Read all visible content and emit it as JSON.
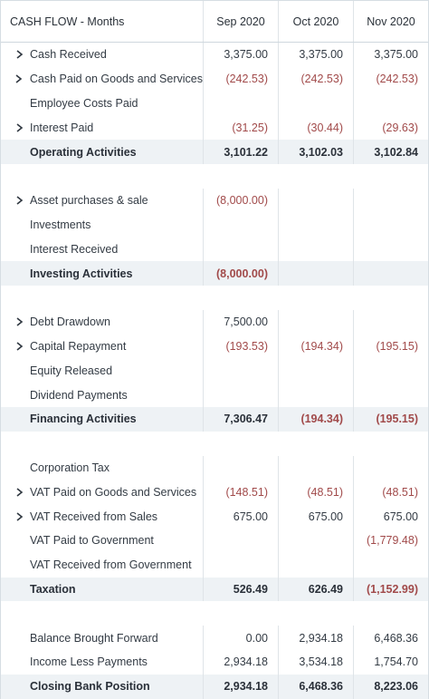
{
  "header": {
    "title": "CASH FLOW - Months",
    "columns": [
      "Sep 2020",
      "Oct 2020",
      "Nov 2020"
    ]
  },
  "rows": [
    {
      "type": "item",
      "label": "Cash Received",
      "expandable": true,
      "v": [
        "3,375.00",
        "3,375.00",
        "3,375.00"
      ],
      "neg": [
        false,
        false,
        false
      ]
    },
    {
      "type": "item",
      "label": "Cash Paid on Goods and Services",
      "expandable": true,
      "v": [
        "(242.53)",
        "(242.53)",
        "(242.53)"
      ],
      "neg": [
        true,
        true,
        true
      ]
    },
    {
      "type": "item",
      "label": "Employee Costs Paid",
      "expandable": false,
      "v": [
        "",
        "",
        ""
      ],
      "neg": [
        false,
        false,
        false
      ]
    },
    {
      "type": "item",
      "label": "Interest Paid",
      "expandable": true,
      "v": [
        "(31.25)",
        "(30.44)",
        "(29.63)"
      ],
      "neg": [
        true,
        true,
        true
      ]
    },
    {
      "type": "subtotal",
      "label": "Operating Activities",
      "v": [
        "3,101.22",
        "3,102.03",
        "3,102.84"
      ],
      "neg": [
        false,
        false,
        false
      ]
    },
    {
      "type": "spacer"
    },
    {
      "type": "item",
      "label": "Asset purchases & sale",
      "expandable": true,
      "v": [
        "(8,000.00)",
        "",
        ""
      ],
      "neg": [
        true,
        false,
        false
      ]
    },
    {
      "type": "item",
      "label": "Investments",
      "expandable": false,
      "v": [
        "",
        "",
        ""
      ],
      "neg": [
        false,
        false,
        false
      ]
    },
    {
      "type": "item",
      "label": "Interest Received",
      "expandable": false,
      "v": [
        "",
        "",
        ""
      ],
      "neg": [
        false,
        false,
        false
      ]
    },
    {
      "type": "subtotal",
      "label": "Investing Activities",
      "v": [
        "(8,000.00)",
        "",
        ""
      ],
      "neg": [
        true,
        false,
        false
      ]
    },
    {
      "type": "spacer"
    },
    {
      "type": "item",
      "label": "Debt Drawdown",
      "expandable": true,
      "v": [
        "7,500.00",
        "",
        ""
      ],
      "neg": [
        false,
        false,
        false
      ]
    },
    {
      "type": "item",
      "label": "Capital Repayment",
      "expandable": true,
      "v": [
        "(193.53)",
        "(194.34)",
        "(195.15)"
      ],
      "neg": [
        true,
        true,
        true
      ]
    },
    {
      "type": "item",
      "label": "Equity Released",
      "expandable": false,
      "v": [
        "",
        "",
        ""
      ],
      "neg": [
        false,
        false,
        false
      ]
    },
    {
      "type": "item",
      "label": "Dividend Payments",
      "expandable": false,
      "v": [
        "",
        "",
        ""
      ],
      "neg": [
        false,
        false,
        false
      ]
    },
    {
      "type": "subtotal",
      "label": "Financing Activities",
      "v": [
        "7,306.47",
        "(194.34)",
        "(195.15)"
      ],
      "neg": [
        false,
        true,
        true
      ]
    },
    {
      "type": "spacer"
    },
    {
      "type": "item",
      "label": "Corporation Tax",
      "expandable": false,
      "v": [
        "",
        "",
        ""
      ],
      "neg": [
        false,
        false,
        false
      ]
    },
    {
      "type": "item",
      "label": "VAT Paid on Goods and Services",
      "expandable": true,
      "v": [
        "(148.51)",
        "(48.51)",
        "(48.51)"
      ],
      "neg": [
        true,
        true,
        true
      ]
    },
    {
      "type": "item",
      "label": "VAT Received from Sales",
      "expandable": true,
      "v": [
        "675.00",
        "675.00",
        "675.00"
      ],
      "neg": [
        false,
        false,
        false
      ]
    },
    {
      "type": "item",
      "label": "VAT Paid to Government",
      "expandable": false,
      "v": [
        "",
        "",
        "(1,779.48)"
      ],
      "neg": [
        false,
        false,
        true
      ]
    },
    {
      "type": "item",
      "label": "VAT Received from Government",
      "expandable": false,
      "v": [
        "",
        "",
        ""
      ],
      "neg": [
        false,
        false,
        false
      ]
    },
    {
      "type": "subtotal",
      "label": "Taxation",
      "v": [
        "526.49",
        "626.49",
        "(1,152.99)"
      ],
      "neg": [
        false,
        false,
        true
      ]
    },
    {
      "type": "spacer"
    },
    {
      "type": "item",
      "label": "Balance Brought Forward",
      "expandable": false,
      "v": [
        "0.00",
        "2,934.18",
        "6,468.36"
      ],
      "neg": [
        false,
        false,
        false
      ]
    },
    {
      "type": "item",
      "label": "Income Less Payments",
      "expandable": false,
      "v": [
        "2,934.18",
        "3,534.18",
        "1,754.70"
      ],
      "neg": [
        false,
        false,
        false
      ]
    },
    {
      "type": "subtotal",
      "label": "Closing Bank Position",
      "v": [
        "2,934.18",
        "6,468.36",
        "8,223.06"
      ],
      "neg": [
        false,
        false,
        false
      ]
    }
  ],
  "colors": {
    "negative": "#a14a4a",
    "subtotal_bg": "#eef2f5",
    "grid": "#dfe4e8"
  },
  "icons": {
    "expand": "chevron-right-icon"
  }
}
